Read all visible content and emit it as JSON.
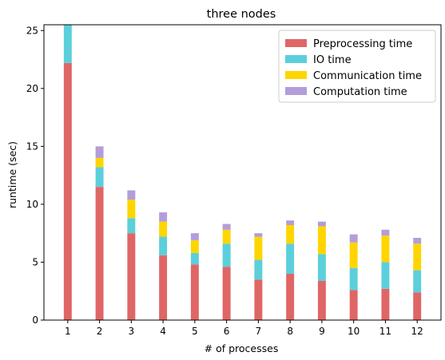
{
  "chart_data": {
    "type": "bar",
    "stacked": true,
    "title": "three nodes",
    "xlabel": "# of processes",
    "ylabel": "runtime (sec)",
    "ylim": [
      0,
      25.5
    ],
    "yticks": [
      0,
      5,
      10,
      15,
      20,
      25
    ],
    "categories": [
      "1",
      "2",
      "3",
      "4",
      "5",
      "6",
      "7",
      "8",
      "9",
      "10",
      "11",
      "12"
    ],
    "legend_position": "top-right",
    "grid": false,
    "series": [
      {
        "name": "Preprocessing time",
        "color": "#e06666",
        "values": [
          22.2,
          11.5,
          7.5,
          5.6,
          4.8,
          4.6,
          3.5,
          4.0,
          3.4,
          2.6,
          2.7,
          2.4
        ]
      },
      {
        "name": "IO time",
        "color": "#5bcfdb",
        "values": [
          5.0,
          1.7,
          1.3,
          1.6,
          1.0,
          2.0,
          1.7,
          2.6,
          2.3,
          1.9,
          2.3,
          1.9
        ]
      },
      {
        "name": "Communication time",
        "color": "#ffd500",
        "values": [
          0.0,
          0.8,
          1.6,
          1.3,
          1.1,
          1.2,
          2.0,
          1.6,
          2.4,
          2.2,
          2.3,
          2.3
        ]
      },
      {
        "name": "Computation time",
        "color": "#b39ddb",
        "values": [
          0.0,
          1.0,
          0.8,
          0.8,
          0.6,
          0.5,
          0.3,
          0.4,
          0.4,
          0.7,
          0.5,
          0.5
        ]
      }
    ]
  }
}
